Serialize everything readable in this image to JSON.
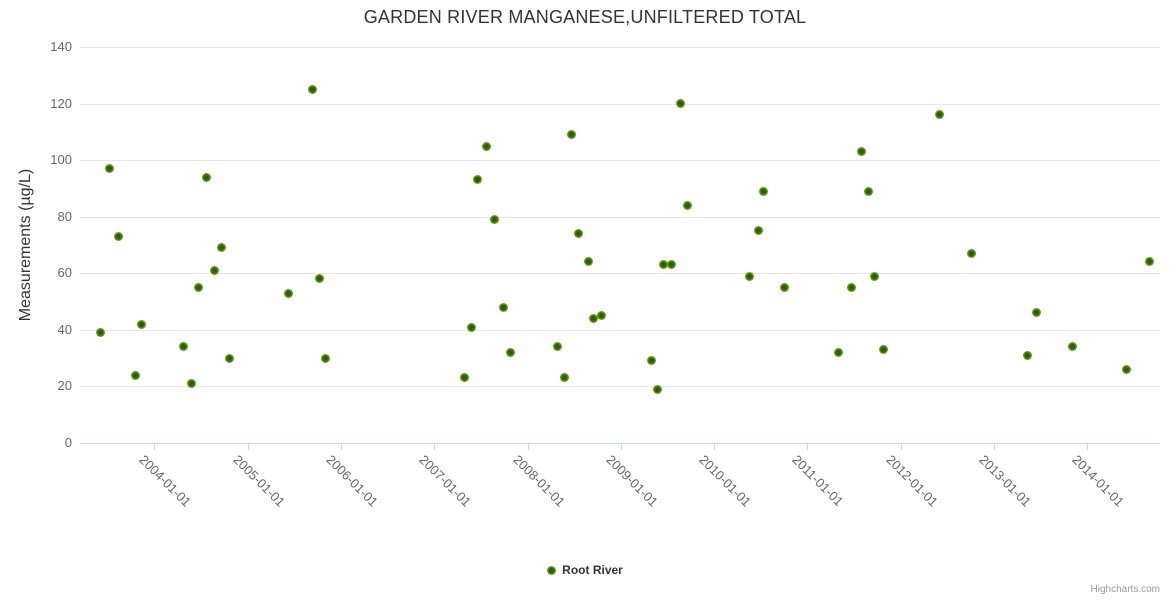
{
  "header": {
    "title": "GARDEN RIVER MANGANESE,UNFILTERED TOTAL"
  },
  "credits": {
    "label": "Highcharts.com"
  },
  "colors": {
    "title": "#333333",
    "axis_label": "#666666",
    "gridline": "#e6e6e6",
    "axis_line": "#ccd6eb",
    "point_green": "#60a011",
    "point_center": "#2d5a08"
  },
  "chart_data": {
    "type": "scatter",
    "title": "GARDEN RIVER MANGANESE,UNFILTERED TOTAL",
    "xlabel": "",
    "ylabel": "Measurements (µg/L)",
    "x_type": "datetime",
    "xlim": [
      "2003-03-16",
      "2014-10-12"
    ],
    "ylim": [
      0,
      140
    ],
    "y_ticks": [
      0,
      20,
      40,
      60,
      80,
      100,
      120,
      140
    ],
    "x_ticks": [
      "2004-01-01",
      "2005-01-01",
      "2006-01-01",
      "2007-01-01",
      "2008-01-01",
      "2009-01-01",
      "2010-01-01",
      "2011-01-01",
      "2012-01-01",
      "2013-01-01",
      "2014-01-01"
    ],
    "grid": "horizontal",
    "legend_position": "bottom-center",
    "series": [
      {
        "name": "Root River",
        "color": "#60a011",
        "points": [
          [
            "2003-06-04",
            39
          ],
          [
            "2003-07-09",
            97
          ],
          [
            "2003-08-14",
            73
          ],
          [
            "2003-10-21",
            24
          ],
          [
            "2003-11-11",
            42
          ],
          [
            "2004-04-24",
            34
          ],
          [
            "2004-05-27",
            21
          ],
          [
            "2004-06-21",
            55
          ],
          [
            "2004-07-25",
            94
          ],
          [
            "2004-08-26",
            61
          ],
          [
            "2004-09-22",
            69
          ],
          [
            "2004-10-20",
            30
          ],
          [
            "2005-06-08",
            53
          ],
          [
            "2005-09-13",
            125
          ],
          [
            "2005-10-09",
            58
          ],
          [
            "2005-11-03",
            30
          ],
          [
            "2007-04-28",
            23
          ],
          [
            "2007-05-25",
            41
          ],
          [
            "2007-06-20",
            93
          ],
          [
            "2007-07-25",
            105
          ],
          [
            "2007-08-23",
            79
          ],
          [
            "2007-09-29",
            48
          ],
          [
            "2007-10-26",
            32
          ],
          [
            "2008-04-27",
            34
          ],
          [
            "2008-05-27",
            23
          ],
          [
            "2008-06-20",
            109
          ],
          [
            "2008-07-18",
            74
          ],
          [
            "2008-08-27",
            64
          ],
          [
            "2008-09-16",
            44
          ],
          [
            "2008-10-19",
            45
          ],
          [
            "2009-04-29",
            29
          ],
          [
            "2009-05-23",
            19
          ],
          [
            "2009-06-17",
            63
          ],
          [
            "2009-07-17",
            63
          ],
          [
            "2009-08-22",
            120
          ],
          [
            "2009-09-19",
            84
          ],
          [
            "2010-05-19",
            59
          ],
          [
            "2010-06-23",
            75
          ],
          [
            "2010-07-14",
            89
          ],
          [
            "2010-10-03",
            55
          ],
          [
            "2011-05-03",
            32
          ],
          [
            "2011-06-24",
            55
          ],
          [
            "2011-07-30",
            103
          ],
          [
            "2011-08-27",
            89
          ],
          [
            "2011-09-22",
            59
          ],
          [
            "2011-10-26",
            33
          ],
          [
            "2012-06-03",
            116
          ],
          [
            "2012-10-03",
            67
          ],
          [
            "2013-05-10",
            31
          ],
          [
            "2013-06-14",
            46
          ],
          [
            "2013-11-02",
            34
          ],
          [
            "2014-06-02",
            26
          ],
          [
            "2014-08-31",
            64
          ]
        ]
      }
    ]
  }
}
